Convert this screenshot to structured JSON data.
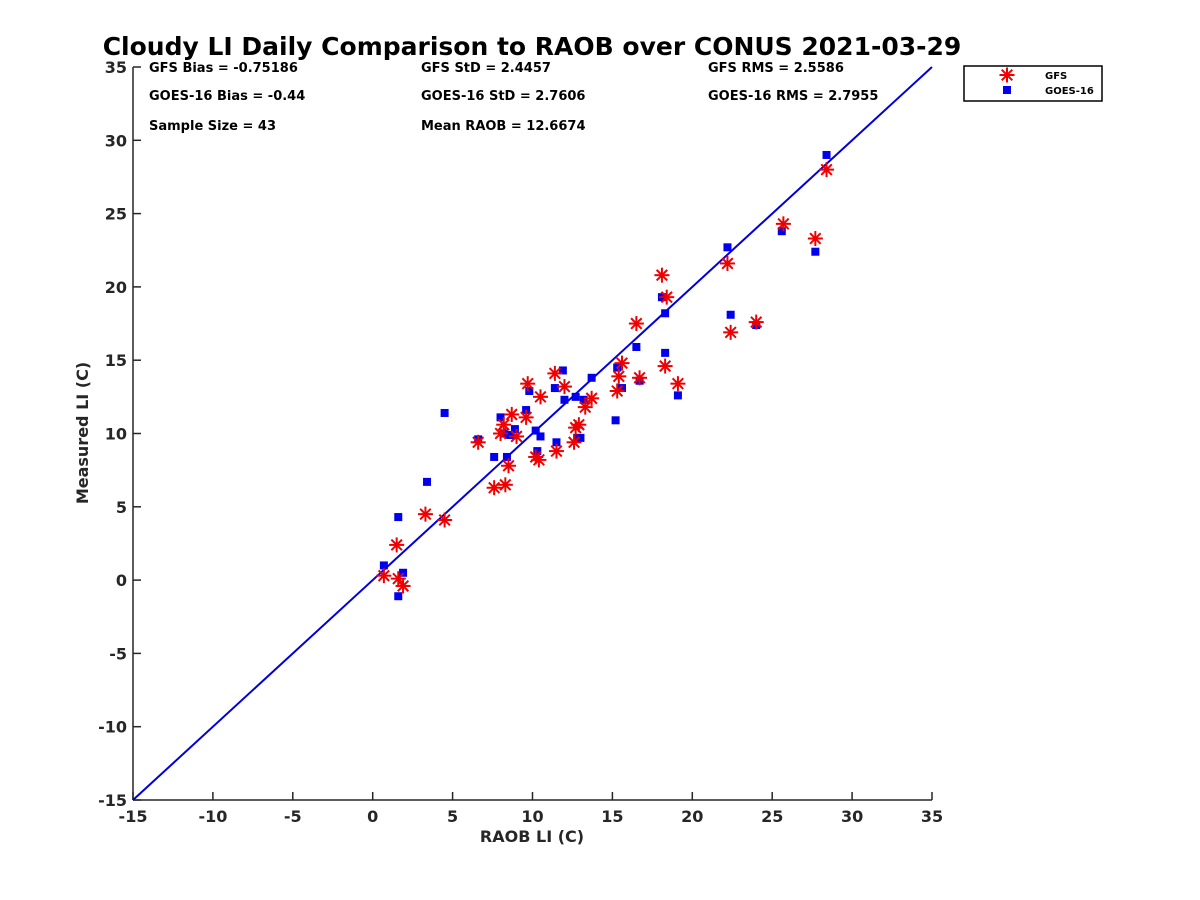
{
  "chart_data": {
    "type": "scatter",
    "title": "Cloudy LI Daily Comparison to RAOB over CONUS 2021-03-29",
    "xlabel": "RAOB LI (C)",
    "ylabel": "Measured LI (C)",
    "xlim": [
      -15,
      35
    ],
    "ylim": [
      -15,
      35
    ],
    "xticks": [
      -15,
      -10,
      -5,
      0,
      5,
      10,
      15,
      20,
      25,
      30,
      35
    ],
    "yticks": [
      -15,
      -10,
      -5,
      0,
      5,
      10,
      15,
      20,
      25,
      30,
      35
    ],
    "grid": false,
    "legend_position": "outside top-right",
    "reference_line": {
      "x": [
        -15,
        35
      ],
      "y": [
        -15,
        35
      ],
      "color": "#0000dd"
    },
    "stats": [
      "GFS Bias = -0.75186",
      "GFS StD = 2.4457",
      "GFS RMS = 2.5586",
      "GOES-16 Bias = -0.44",
      "GOES-16 StD = 2.7606",
      "GOES-16 RMS = 2.7955",
      "Sample Size = 43",
      "Mean RAOB = 12.6674"
    ],
    "series": [
      {
        "name": "GFS",
        "marker": "asterisk",
        "color": "#ee0000",
        "points": [
          [
            0.7,
            0.3
          ],
          [
            1.5,
            2.4
          ],
          [
            1.6,
            0.1
          ],
          [
            1.9,
            -0.4
          ],
          [
            3.3,
            4.5
          ],
          [
            4.5,
            4.1
          ],
          [
            6.6,
            9.4
          ],
          [
            7.6,
            6.3
          ],
          [
            8.0,
            10.0
          ],
          [
            8.2,
            10.6
          ],
          [
            8.3,
            6.5
          ],
          [
            8.5,
            7.8
          ],
          [
            8.7,
            11.3
          ],
          [
            9.0,
            9.8
          ],
          [
            9.6,
            11.1
          ],
          [
            9.7,
            13.4
          ],
          [
            10.2,
            8.4
          ],
          [
            10.4,
            8.2
          ],
          [
            10.5,
            12.5
          ],
          [
            11.4,
            14.1
          ],
          [
            11.5,
            8.8
          ],
          [
            12.0,
            13.2
          ],
          [
            12.6,
            9.4
          ],
          [
            12.7,
            10.4
          ],
          [
            12.9,
            10.6
          ],
          [
            13.3,
            11.8
          ],
          [
            13.7,
            12.4
          ],
          [
            15.3,
            12.9
          ],
          [
            15.4,
            13.9
          ],
          [
            15.6,
            14.8
          ],
          [
            16.5,
            17.5
          ],
          [
            16.7,
            13.8
          ],
          [
            18.1,
            20.8
          ],
          [
            18.3,
            14.6
          ],
          [
            18.4,
            19.3
          ],
          [
            19.1,
            13.4
          ],
          [
            22.2,
            21.6
          ],
          [
            22.4,
            16.9
          ],
          [
            24.0,
            17.6
          ],
          [
            25.7,
            24.3
          ],
          [
            27.7,
            23.3
          ],
          [
            28.4,
            28.0
          ]
        ]
      },
      {
        "name": "GOES-16",
        "marker": "square",
        "color": "#0000ee",
        "points": [
          [
            0.7,
            1.0
          ],
          [
            1.6,
            4.3
          ],
          [
            1.6,
            -1.1
          ],
          [
            1.9,
            0.5
          ],
          [
            3.4,
            6.7
          ],
          [
            4.5,
            11.4
          ],
          [
            6.6,
            9.6
          ],
          [
            7.6,
            8.4
          ],
          [
            8.0,
            11.1
          ],
          [
            8.2,
            10.0
          ],
          [
            8.4,
            8.4
          ],
          [
            8.6,
            9.9
          ],
          [
            8.9,
            10.3
          ],
          [
            9.6,
            11.6
          ],
          [
            9.8,
            12.9
          ],
          [
            10.2,
            10.2
          ],
          [
            10.3,
            8.8
          ],
          [
            10.5,
            9.8
          ],
          [
            11.4,
            13.1
          ],
          [
            11.5,
            9.4
          ],
          [
            11.9,
            14.3
          ],
          [
            12.0,
            12.3
          ],
          [
            12.7,
            12.5
          ],
          [
            12.8,
            9.7
          ],
          [
            13.0,
            9.7
          ],
          [
            13.2,
            12.3
          ],
          [
            13.7,
            13.8
          ],
          [
            15.2,
            10.9
          ],
          [
            15.3,
            14.5
          ],
          [
            15.6,
            13.1
          ],
          [
            16.5,
            15.9
          ],
          [
            16.7,
            13.6
          ],
          [
            18.1,
            19.3
          ],
          [
            18.3,
            18.2
          ],
          [
            18.3,
            15.5
          ],
          [
            19.1,
            12.6
          ],
          [
            22.2,
            22.7
          ],
          [
            22.4,
            18.1
          ],
          [
            24.0,
            17.4
          ],
          [
            25.6,
            23.8
          ],
          [
            27.7,
            22.4
          ],
          [
            28.4,
            29.0
          ]
        ]
      }
    ]
  }
}
